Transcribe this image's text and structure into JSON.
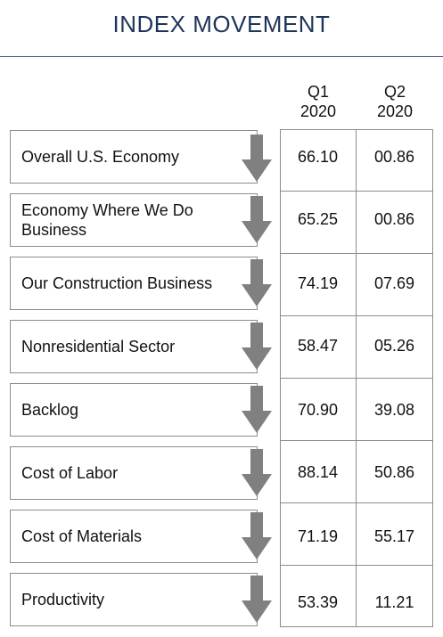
{
  "header": {
    "title": "INDEX MOVEMENT"
  },
  "columns": [
    {
      "quarter": "Q1",
      "year": "2020"
    },
    {
      "quarter": "Q2",
      "year": "2020"
    }
  ],
  "rows": [
    {
      "label": "Overall U.S. Economy",
      "q1": "66.10",
      "q2": "00.86",
      "trend": "down-arrow-icon"
    },
    {
      "label": "Economy Where We Do Business",
      "q1": "65.25",
      "q2": "00.86",
      "trend": "down-arrow-icon"
    },
    {
      "label": "Our Construction Business",
      "q1": "74.19",
      "q2": "07.69",
      "trend": "down-arrow-icon"
    },
    {
      "label": "Nonresidential Sector",
      "q1": "58.47",
      "q2": "05.26",
      "trend": "down-arrow-icon"
    },
    {
      "label": "Backlog",
      "q1": "70.90",
      "q2": "39.08",
      "trend": "down-arrow-icon"
    },
    {
      "label": "Cost of Labor",
      "q1": "88.14",
      "q2": "50.86",
      "trend": "down-arrow-icon"
    },
    {
      "label": "Cost of Materials",
      "q1": "71.19",
      "q2": "55.17",
      "trend": "down-arrow-icon"
    },
    {
      "label": "Productivity",
      "q1": "53.39",
      "q2": "11.21",
      "trend": "down-arrow-icon"
    }
  ],
  "colors": {
    "title": "#1e3459",
    "rule": "#4a5e86",
    "arrow": "#808080",
    "border": "#8c8c8c"
  }
}
